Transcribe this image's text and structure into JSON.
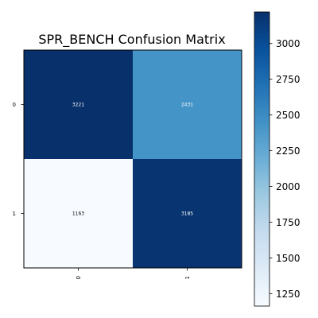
{
  "chart_data": {
    "type": "heatmap",
    "title": "SPR_BENCH Confusion Matrix",
    "xlabel": "",
    "ylabel": "",
    "x_categories": [
      "0",
      "1"
    ],
    "y_categories": [
      "0",
      "1"
    ],
    "matrix": [
      [
        3221,
        2431
      ],
      [
        1163,
        3185
      ]
    ],
    "colormap": "Blues",
    "colorbar": {
      "min": 1163,
      "max": 3221,
      "ticks": [
        1250,
        1500,
        1750,
        2000,
        2250,
        2500,
        2750,
        3000
      ]
    },
    "grid": false
  }
}
